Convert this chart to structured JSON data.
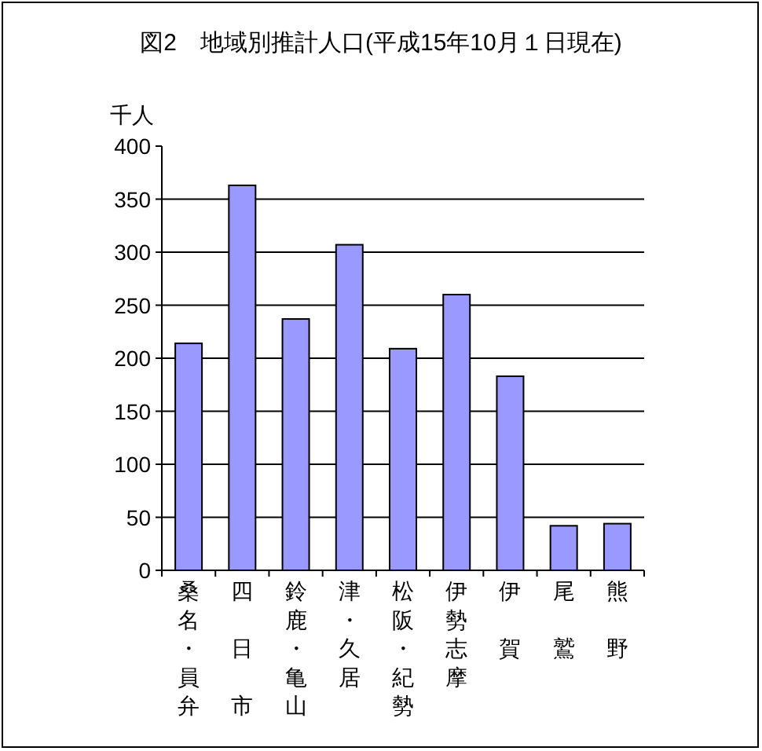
{
  "chart_data": {
    "type": "bar",
    "title": "図2　地域別推計人口(平成15年10月１日現在)",
    "ylabel": "千人",
    "categories": [
      "桑名・員弁",
      "四日市",
      "鈴鹿・亀山",
      "津・久居",
      "松阪・紀勢",
      "伊勢志摩",
      "伊賀",
      "尾鷲",
      "熊野"
    ],
    "values": [
      214,
      363,
      237,
      307,
      209,
      260,
      183,
      42,
      44
    ],
    "color": "#9999ff",
    "ylim": [
      0,
      400
    ],
    "yticks": [
      0,
      50,
      100,
      150,
      200,
      250,
      300,
      350,
      400
    ],
    "grid": "y"
  }
}
